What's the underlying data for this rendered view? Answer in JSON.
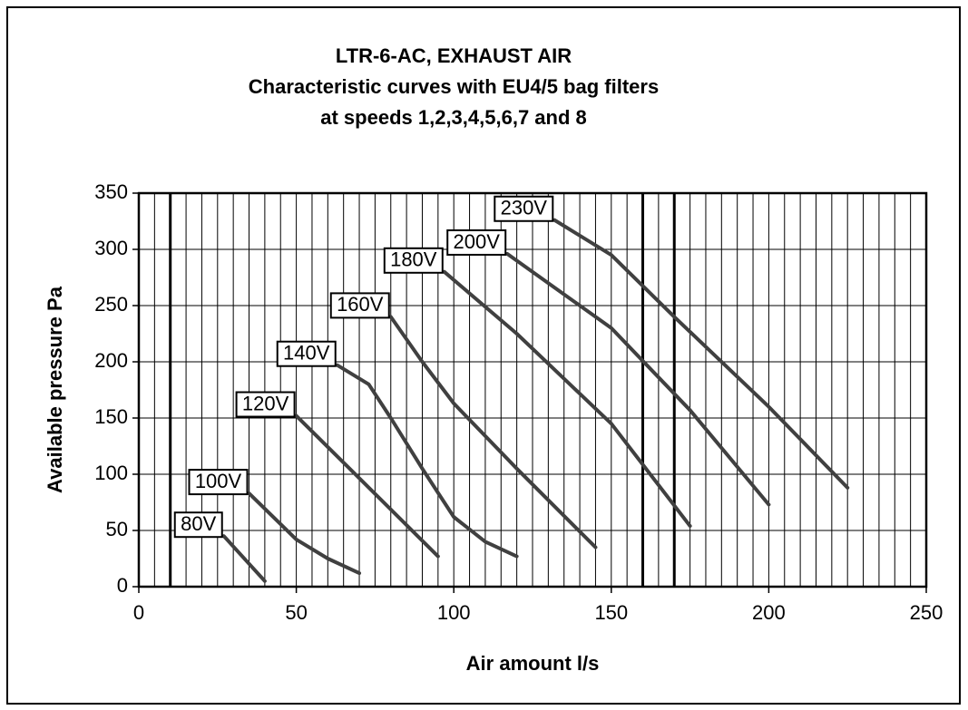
{
  "chart_data": {
    "type": "line",
    "title": [
      "LTR-6-AC, EXHAUST AIR",
      "Characteristic curves with EU4/5 bag filters",
      "at speeds 1,2,3,4,5,6,7 and 8"
    ],
    "xlabel": "Air amount l/s",
    "ylabel": "Available pressure Pa",
    "xlim": [
      0,
      250
    ],
    "xticks": [
      0,
      50,
      100,
      150,
      200,
      250
    ],
    "ylim": [
      0,
      350
    ],
    "yticks": [
      0,
      50,
      100,
      150,
      200,
      250,
      300,
      350
    ],
    "grid": true,
    "x_grid_lines": [
      5,
      10,
      15,
      20,
      25,
      30,
      35,
      40,
      45,
      50,
      55,
      60,
      65,
      70,
      75,
      80,
      85,
      90,
      95,
      100,
      105,
      110,
      115,
      120,
      125,
      130,
      135,
      140,
      145,
      150,
      155,
      160,
      165,
      170,
      175,
      180,
      185,
      190,
      195,
      200,
      205,
      210,
      215,
      220,
      225,
      230,
      235,
      240,
      245
    ],
    "x_thick_lines": [
      10,
      160,
      170
    ],
    "series": [
      {
        "name": "80V",
        "color": "#404040",
        "x": [
          27,
          40
        ],
        "values": [
          45,
          5
        ]
      },
      {
        "name": "100V",
        "color": "#404040",
        "x": [
          35,
          50,
          60,
          70
        ],
        "values": [
          83,
          42,
          25,
          12
        ]
      },
      {
        "name": "120V",
        "color": "#404040",
        "x": [
          50,
          95
        ],
        "values": [
          152,
          27
        ]
      },
      {
        "name": "140V",
        "color": "#404040",
        "x": [
          63,
          73,
          80,
          90,
          100,
          110,
          120
        ],
        "values": [
          197,
          180,
          150,
          105,
          62,
          40,
          27
        ]
      },
      {
        "name": "160V",
        "color": "#404040",
        "x": [
          80,
          90,
          100,
          120,
          145
        ],
        "values": [
          240,
          200,
          163,
          105,
          35
        ]
      },
      {
        "name": "180V",
        "color": "#404040",
        "x": [
          97,
          120,
          150,
          175
        ],
        "values": [
          280,
          225,
          145,
          54
        ]
      },
      {
        "name": "200V",
        "color": "#404040",
        "x": [
          117,
          135,
          150,
          175,
          200
        ],
        "values": [
          296,
          260,
          230,
          157,
          73
        ]
      },
      {
        "name": "230V",
        "color": "#404040",
        "x": [
          132,
          150,
          170,
          200,
          225
        ],
        "values": [
          326,
          295,
          240,
          160,
          88
        ]
      }
    ]
  }
}
